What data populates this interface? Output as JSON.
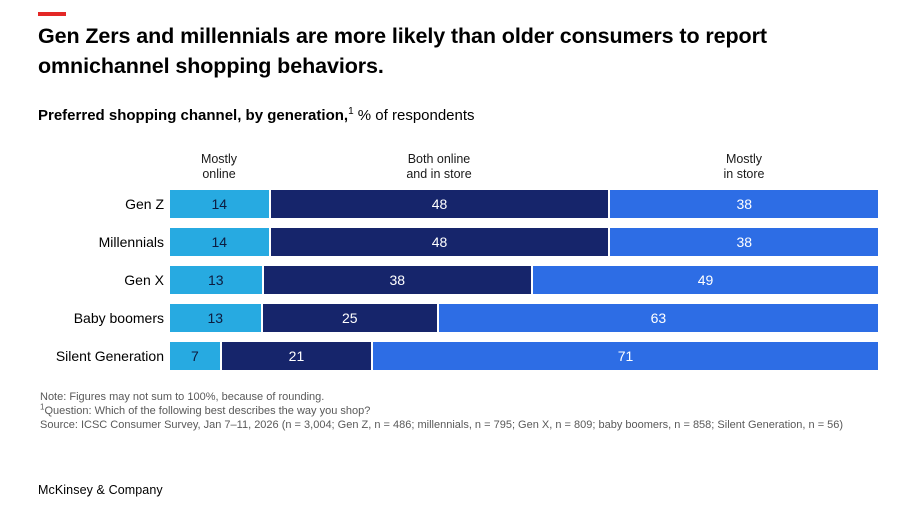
{
  "page": {
    "accent_red": "#e32726",
    "title": "Gen Zers and millennials are more likely than older consumers to report omnichannel shopping behaviors.",
    "subtitle_bold": "Preferred shopping channel, by generation,",
    "subtitle_sup": "1",
    "subtitle_rest": "% of respondents",
    "footer": "McKinsey & Company"
  },
  "chart_data": {
    "type": "bar",
    "orientation": "horizontal",
    "stacked": true,
    "title": "Preferred shopping channel, by generation, % of respondents",
    "categories": [
      "Gen Z",
      "Millennials",
      "Gen X",
      "Baby boomers",
      "Silent Generation"
    ],
    "series": [
      {
        "name": "Mostly online",
        "color": "#27aae1",
        "label_color": "#0d1b3e",
        "values": [
          14,
          14,
          13,
          13,
          7
        ]
      },
      {
        "name": "Both online and in store",
        "color": "#16256b",
        "label_color": "#ffffff",
        "values": [
          48,
          48,
          38,
          25,
          21
        ]
      },
      {
        "name": "Mostly in store",
        "color": "#2d6de5",
        "label_color": "#ffffff",
        "values": [
          38,
          38,
          49,
          63,
          71
        ]
      }
    ],
    "column_headers": [
      {
        "line1": "Mostly",
        "line2": "online"
      },
      {
        "line1": "Both online",
        "line2": "and in store"
      },
      {
        "line1": "Mostly",
        "line2": "in store"
      }
    ],
    "xlim": [
      0,
      100
    ],
    "grid": false,
    "value_unit": "%",
    "legend_position": "column-headers-above-bars"
  },
  "notes": {
    "note": "Note: Figures may not sum to 100%, because of rounding.",
    "question_sup": "1",
    "question": "Question: Which of the following best describes the way you shop?",
    "source": "Source: ICSC Consumer Survey, Jan 7–11, 2026 (n = 3,004; Gen Z, n = 486; millennials, n = 795; Gen X, n = 809; baby boomers, n = 858; Silent Generation, n = 56)"
  }
}
